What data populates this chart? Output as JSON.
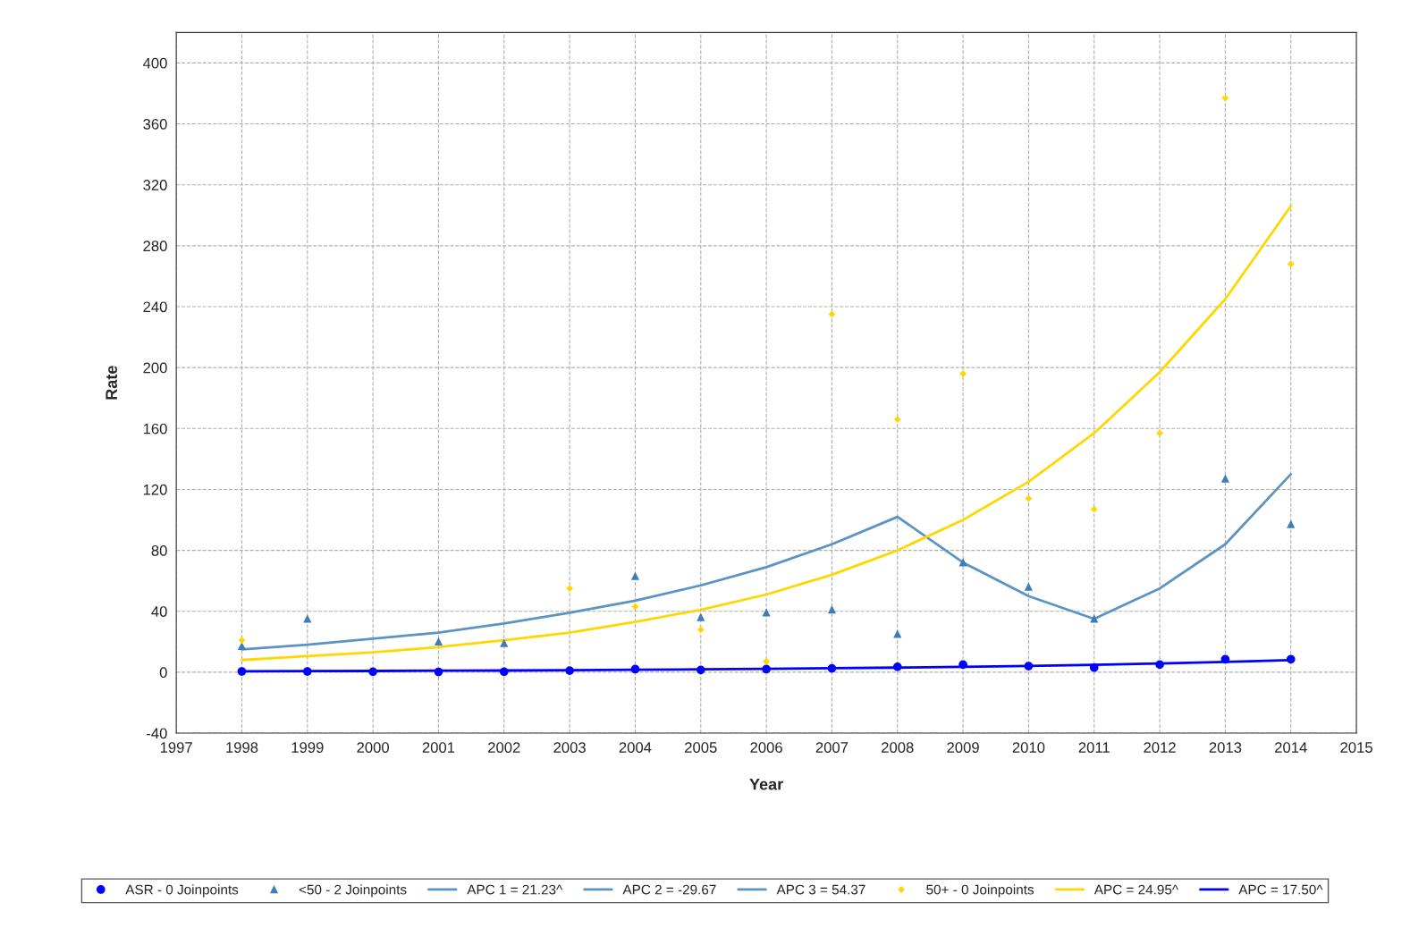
{
  "chart_data": {
    "type": "line",
    "xlabel": "Year",
    "ylabel": "Rate",
    "xlim": [
      1997,
      2015
    ],
    "xticks": [
      1997,
      1998,
      1999,
      2000,
      2001,
      2002,
      2003,
      2004,
      2005,
      2006,
      2007,
      2008,
      2009,
      2010,
      2011,
      2012,
      2013,
      2014,
      2015
    ],
    "ylim": [
      -40,
      420
    ],
    "yticks": [
      -40,
      0,
      40,
      80,
      120,
      160,
      200,
      240,
      280,
      320,
      360,
      400
    ],
    "grid": true,
    "legend": "bottom",
    "series": [
      {
        "name": "ASR - 0 Joinpoints",
        "type": "scatter",
        "marker": "circle",
        "color": "#0000ff",
        "x": [
          1998,
          1999,
          2000,
          2001,
          2002,
          2003,
          2004,
          2005,
          2006,
          2007,
          2008,
          2009,
          2010,
          2011,
          2012,
          2013,
          2014
        ],
        "values": [
          0.5,
          0.5,
          0.3,
          0.2,
          0.3,
          1,
          2,
          1.5,
          2,
          2.5,
          3.5,
          5,
          4,
          3,
          5,
          8.5,
          8.5
        ]
      },
      {
        "name": "<50 - 2 Joinpoints",
        "type": "scatter",
        "marker": "triangle",
        "color": "#3d7fb5",
        "x": [
          1998,
          1999,
          2000,
          2001,
          2002,
          2003,
          2004,
          2005,
          2006,
          2007,
          2008,
          2009,
          2010,
          2011,
          2012,
          2013,
          2014
        ],
        "values": [
          17,
          35,
          null,
          20,
          19,
          null,
          63,
          36,
          39,
          41,
          25,
          72,
          56,
          35,
          null,
          127,
          97
        ]
      },
      {
        "name": "APC 1 = 21.23^",
        "marker": "none",
        "color": "#5b93c4",
        "x": [
          1998,
          1999,
          2000,
          2001,
          2002,
          2003,
          2004,
          2005,
          2006,
          2007,
          2008
        ],
        "values": [
          15,
          18,
          22,
          26,
          32,
          39,
          47,
          57,
          69,
          84,
          102
        ]
      },
      {
        "name": "APC 2 = -29.67",
        "marker": "none",
        "color": "#5b93c4",
        "x": [
          2008,
          2009,
          2010,
          2011
        ],
        "values": [
          102,
          72,
          50,
          35
        ]
      },
      {
        "name": "APC 3 = 54.37",
        "marker": "none",
        "color": "#5b93c4",
        "x": [
          2011,
          2012,
          2013,
          2014
        ],
        "values": [
          35,
          55,
          84,
          130
        ]
      },
      {
        "name": "50+ - 0 Joinpoints",
        "type": "scatter",
        "marker": "diamond",
        "color": "#ffd700",
        "x": [
          1998,
          2003,
          2004,
          2005,
          2006,
          2007,
          2008,
          2009,
          2010,
          2011,
          2012,
          2013,
          2014
        ],
        "values": [
          21,
          55,
          43,
          28,
          7,
          235,
          166,
          196,
          114,
          107,
          157,
          377,
          268
        ]
      },
      {
        "name": "APC = 24.95^",
        "marker": "none",
        "color": "#ffd700",
        "x": [
          1998,
          1999,
          2000,
          2001,
          2002,
          2003,
          2004,
          2005,
          2006,
          2007,
          2008,
          2009,
          2010,
          2011,
          2012,
          2013,
          2014
        ],
        "values": [
          8,
          10.5,
          13,
          16.5,
          21,
          26,
          33,
          41,
          51,
          64,
          80,
          100,
          125,
          157,
          197,
          245,
          306
        ]
      },
      {
        "name": "APC = 17.50^",
        "marker": "none",
        "color": "#0000ff",
        "x": [
          1998,
          1999,
          2000,
          2001,
          2002,
          2003,
          2004,
          2005,
          2006,
          2007,
          2008,
          2009,
          2010,
          2011,
          2012,
          2013,
          2014
        ],
        "values": [
          0.6,
          0.7,
          0.8,
          1,
          1.1,
          1.3,
          1.6,
          1.9,
          2.2,
          2.6,
          3,
          3.5,
          4.1,
          4.9,
          5.7,
          6.7,
          7.9
        ]
      }
    ]
  }
}
